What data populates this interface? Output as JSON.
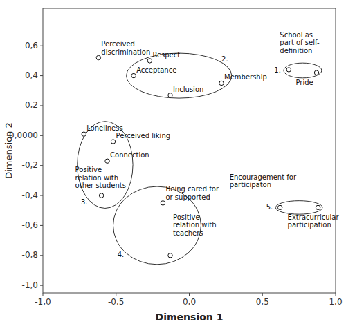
{
  "chart_data": {
    "type": "scatter",
    "x": [
      -0.62,
      -0.27,
      -0.38,
      -0.13,
      0.22,
      0.68,
      0.87,
      -0.72,
      -0.52,
      -0.56,
      -0.6,
      -0.18,
      -0.13,
      0.62,
      0.88
    ],
    "values": [
      0.52,
      0.5,
      0.4,
      0.27,
      0.35,
      0.44,
      0.42,
      0.01,
      -0.04,
      -0.17,
      -0.4,
      -0.45,
      -0.8,
      -0.48,
      -0.48
    ],
    "point_labels": [
      "Perceived\ndiscrimination",
      "Respect",
      "Acceptance",
      "Inclusion",
      "Membership",
      "School as\npart of self-\ndefinition",
      "Pride",
      "Loneliness",
      "Perceived liking",
      "Connection",
      "Positive\nrelation with\nother students",
      "Being cared for\nor supported",
      "Positive\nrelation with\nteachers",
      "Encouragement for\nparticipaton",
      "Extracurricular\nparticipation"
    ],
    "ellipses": [
      {
        "cx": 0.775,
        "cy": 0.435,
        "width": 0.26,
        "height": 0.1,
        "label": "1."
      },
      {
        "cx": -0.07,
        "cy": 0.4,
        "width": 0.72,
        "height": 0.3,
        "label": "2."
      },
      {
        "cx": -0.575,
        "cy": -0.195,
        "width": 0.38,
        "height": 0.58,
        "label": "3."
      },
      {
        "cx": -0.22,
        "cy": -0.6,
        "width": 0.6,
        "height": 0.52,
        "label": "4."
      },
      {
        "cx": 0.75,
        "cy": -0.48,
        "width": 0.32,
        "height": 0.09,
        "label": "5."
      }
    ],
    "xlabel": "Dimension 1",
    "ylabel": "Dimension 2",
    "xlim": [
      -1.0,
      1.0
    ],
    "ylim": [
      -1.05,
      0.85
    ],
    "xticks": [
      {
        "value": -1.0,
        "label": "-1,0"
      },
      {
        "value": -0.5,
        "label": "-0,5"
      },
      {
        "value": 0.0,
        "label": "0,0"
      },
      {
        "value": 0.5,
        "label": "0,5"
      },
      {
        "value": 1.0,
        "label": "1,0"
      }
    ],
    "yticks": [
      {
        "value": -1.0,
        "label": "-1,0"
      },
      {
        "value": -0.8,
        "label": "-0,8"
      },
      {
        "value": -0.6,
        "label": "-0,6"
      },
      {
        "value": -0.4,
        "label": "-0,4"
      },
      {
        "value": -0.2,
        "label": "-0,2"
      },
      {
        "value": 0.0,
        "label": "0,0000"
      },
      {
        "value": 0.2,
        "label": "0,2"
      },
      {
        "value": 0.4,
        "label": "0,4"
      },
      {
        "value": 0.6,
        "label": "0,6"
      }
    ],
    "grid": false
  }
}
